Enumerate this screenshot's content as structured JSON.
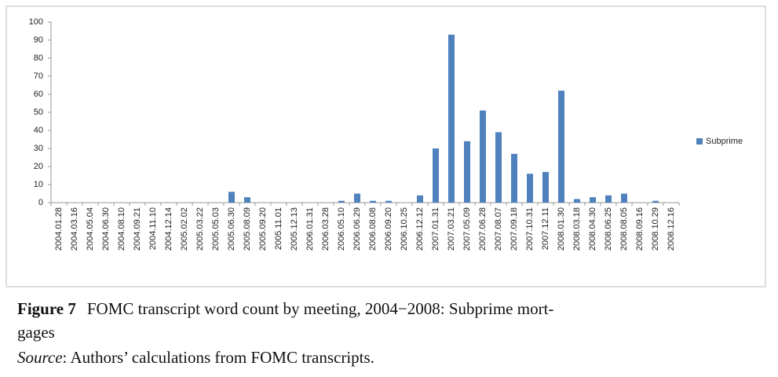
{
  "chart_data": {
    "type": "bar",
    "categories": [
      "2004.01.28",
      "2004.03.16",
      "2004.05.04",
      "2004.06.30",
      "2004.08.10",
      "2004.09.21",
      "2004.11.10",
      "2004.12.14",
      "2005.02.02",
      "2005.03.22",
      "2005.05.03",
      "2005.06.30",
      "2005.08.09",
      "2005.09.20",
      "2005.11.01",
      "2005.12.13",
      "2006.01.31",
      "2006.03.28",
      "2006.05.10",
      "2006.06.29",
      "2006.08.08",
      "2006.09.20",
      "2006.10.25",
      "2006.12.12",
      "2007.01.31",
      "2007.03.21",
      "2007.05.09",
      "2007.06.28",
      "2007.08.07",
      "2007.09.18",
      "2007.10.31",
      "2007.12.11",
      "2008.01.30",
      "2008.03.18",
      "2008.04.30",
      "2008.06.25",
      "2008.08.05",
      "2008.09.16",
      "2008.10.29",
      "2008.12.16"
    ],
    "series": [
      {
        "name": "Subprime",
        "color": "#4f81bd",
        "values": [
          0,
          0,
          0,
          0,
          0,
          0,
          0,
          0,
          0,
          0,
          0,
          6,
          3,
          0,
          0,
          0,
          0,
          0,
          1,
          5,
          1,
          1,
          0,
          4,
          30,
          93,
          34,
          51,
          39,
          27,
          16,
          17,
          62,
          2,
          3,
          4,
          5,
          0,
          1,
          0
        ]
      }
    ],
    "ylim": [
      0,
      100
    ],
    "yticks": [
      0,
      10,
      20,
      30,
      40,
      50,
      60,
      70,
      80,
      90,
      100
    ],
    "legend": "right",
    "figure_label": "Figure 7",
    "caption": [
      "FOMC transcript word count by meeting, 2004−2008: Subprime mort-",
      "gages"
    ],
    "source_label": "Source",
    "source_text": ": Authors’ calculations from FOMC transcripts."
  }
}
